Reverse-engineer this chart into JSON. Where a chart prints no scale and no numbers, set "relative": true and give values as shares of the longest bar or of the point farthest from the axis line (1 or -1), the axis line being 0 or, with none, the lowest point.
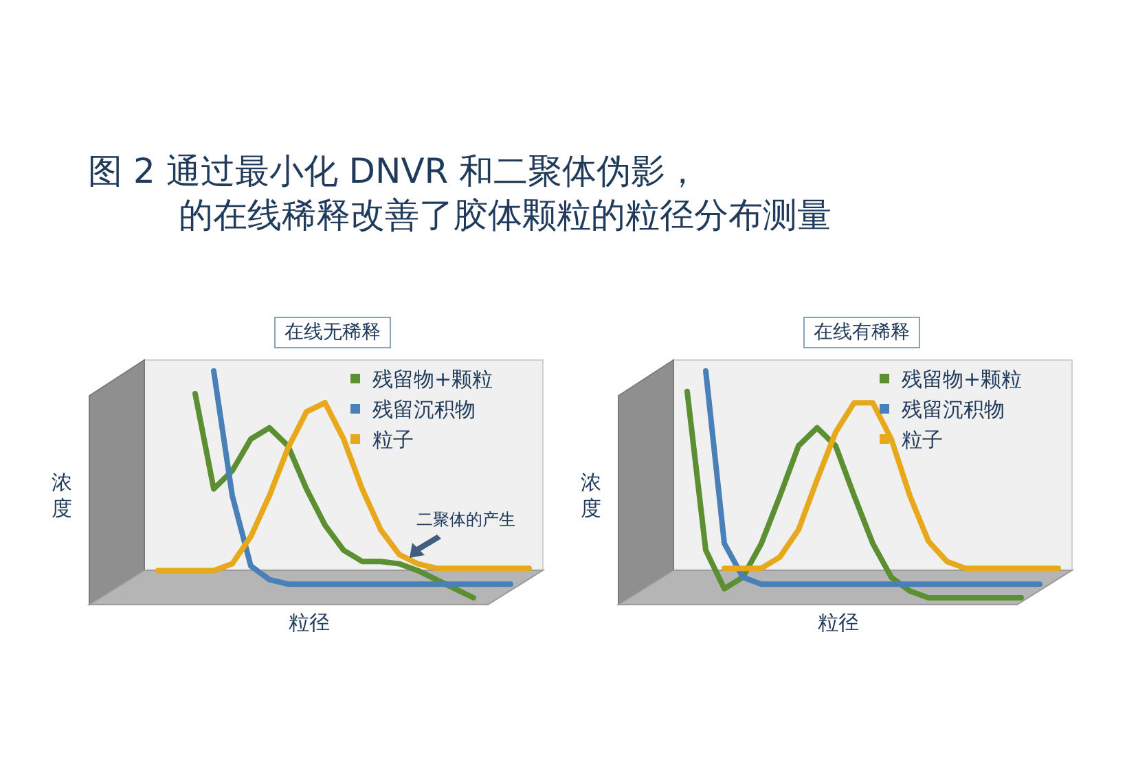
{
  "chart_data": [
    {
      "type": "line",
      "title": "图 2 通过最小化 DNVR 和二聚体伪影，的在线稀释改善了胶体颗粒的粒径分布测量",
      "subtitle": "在线无稀释",
      "xlabel": "粒径",
      "ylabel": "浓度",
      "relative": true,
      "legend": "top right",
      "grid": false,
      "marker": "none",
      "categories": [
        null,
        null,
        null,
        null,
        null,
        null,
        null,
        null,
        null,
        null,
        null,
        null,
        null,
        null,
        null,
        null,
        null,
        null,
        null,
        null,
        null
      ],
      "annotations": [
        "二聚体的产生"
      ],
      "series": [
        {
          "name": "残留物+颗粒",
          "color": "#5b8f32",
          "values": [
            null,
            null,
            0.9,
            0.48,
            0.56,
            0.7,
            0.75,
            0.67,
            0.48,
            0.32,
            0.21,
            0.16,
            0.16,
            0.15,
            0.12,
            0.08,
            0.04,
            0,
            null,
            null,
            null
          ]
        },
        {
          "name": "残留沉积物",
          "color": "#4a80b8",
          "values": [
            null,
            null,
            null,
            1.0,
            0.45,
            0.14,
            0.08,
            0.06,
            0.06,
            0.06,
            0.06,
            0.06,
            0.06,
            0.06,
            0.06,
            0.06,
            0.06,
            0.06,
            0.06,
            0.06,
            null
          ]
        },
        {
          "name": "粒子",
          "color": "#e8a81c",
          "values": [
            0.12,
            0.12,
            0.12,
            0.12,
            0.15,
            0.27,
            0.45,
            0.66,
            0.82,
            0.86,
            0.7,
            0.48,
            0.3,
            0.19,
            0.15,
            0.13,
            0.13,
            0.13,
            0.13,
            0.13,
            0.13
          ]
        }
      ]
    },
    {
      "type": "line",
      "subtitle": "在线有稀释",
      "xlabel": "粒径",
      "ylabel": "浓度",
      "relative": true,
      "legend": "top right",
      "grid": false,
      "marker": "none",
      "categories": [
        null,
        null,
        null,
        null,
        null,
        null,
        null,
        null,
        null,
        null,
        null,
        null,
        null,
        null,
        null,
        null,
        null,
        null,
        null,
        null,
        null
      ],
      "series": [
        {
          "name": "残留物+颗粒",
          "color": "#5b8f32",
          "values": [
            0.91,
            0.21,
            0.04,
            0.09,
            0.24,
            0.45,
            0.67,
            0.75,
            0.67,
            0.45,
            0.24,
            0.09,
            0.03,
            0,
            0,
            0,
            0,
            0,
            0,
            null,
            null
          ]
        },
        {
          "name": "残留沉积物",
          "color": "#4a80b8",
          "values": [
            null,
            1.0,
            0.24,
            0.09,
            0.06,
            0.06,
            0.06,
            0.06,
            0.06,
            0.06,
            0.06,
            0.06,
            0.06,
            0.06,
            0.06,
            0.06,
            0.06,
            0.06,
            0.06,
            0.06,
            null
          ]
        },
        {
          "name": "粒子",
          "color": "#e8a81c",
          "values": [
            null,
            null,
            0.13,
            0.13,
            0.13,
            0.18,
            0.3,
            0.52,
            0.73,
            0.86,
            0.86,
            0.7,
            0.45,
            0.25,
            0.16,
            0.13,
            0.13,
            0.13,
            0.13,
            0.13,
            0.13
          ]
        }
      ]
    }
  ]
}
